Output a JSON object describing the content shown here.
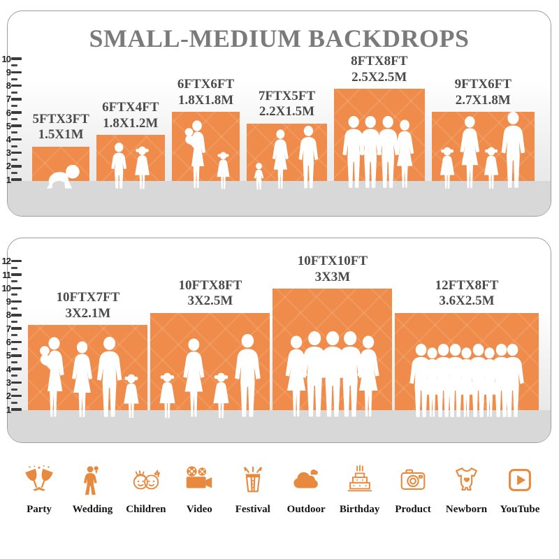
{
  "title": "SMALL-MEDIUM BACKDROPS",
  "panels": [
    {
      "name": "small-medium-backdrops",
      "ruler": {
        "min": 1,
        "max": 10
      },
      "backdrops": [
        {
          "size_ft": "5FTX3FT",
          "size_m": "1.5X1M",
          "w_ft": 5,
          "h_ft": 3,
          "figures": [
            "crawling-baby"
          ]
        },
        {
          "size_ft": "6FTX4FT",
          "size_m": "1.8X1.2M",
          "w_ft": 6,
          "h_ft": 4,
          "figures": [
            "boy",
            "girl"
          ]
        },
        {
          "size_ft": "6FTX6FT",
          "size_m": "1.8X1.8M",
          "w_ft": 6,
          "h_ft": 6,
          "figures": [
            "woman-with-baby",
            "girl"
          ]
        },
        {
          "size_ft": "7FTX5FT",
          "size_m": "2.2X1.5M",
          "w_ft": 7,
          "h_ft": 5,
          "figures": [
            "toddler",
            "woman",
            "man"
          ]
        },
        {
          "size_ft": "8FTX8FT",
          "size_m": "2.5X2.5M",
          "w_ft": 8,
          "h_ft": 8,
          "figures": [
            "man",
            "man",
            "man",
            "woman"
          ]
        },
        {
          "size_ft": "9FTX6FT",
          "size_m": "2.7X1.8M",
          "w_ft": 9,
          "h_ft": 6,
          "figures": [
            "girl",
            "woman",
            "girl",
            "man"
          ]
        }
      ]
    },
    {
      "name": "medium-backdrops",
      "ruler": {
        "min": 1,
        "max": 12
      },
      "backdrops": [
        {
          "size_ft": "10FTX7FT",
          "size_m": "3X2.1M",
          "w_ft": 10,
          "h_ft": 7,
          "figures": [
            "woman-with-baby",
            "woman",
            "man",
            "girl"
          ]
        },
        {
          "size_ft": "10FTX8FT",
          "size_m": "3X2.5M",
          "w_ft": 10,
          "h_ft": 8,
          "figures": [
            "girl",
            "woman",
            "girl",
            "man"
          ]
        },
        {
          "size_ft": "10FTX10FT",
          "size_m": "3X3M",
          "w_ft": 10,
          "h_ft": 10,
          "figures": [
            "woman",
            "man",
            "man",
            "man",
            "woman"
          ]
        },
        {
          "size_ft": "12FTX8FT",
          "size_m": "3.6X2.5M",
          "w_ft": 12,
          "h_ft": 8,
          "figures": [
            "man",
            "woman",
            "man",
            "man",
            "woman",
            "man",
            "woman",
            "man",
            "man"
          ]
        }
      ]
    }
  ],
  "categories": [
    {
      "label": "Party",
      "icon": "party-icon"
    },
    {
      "label": "Wedding",
      "icon": "wedding-icon"
    },
    {
      "label": "Children",
      "icon": "children-icon"
    },
    {
      "label": "Video",
      "icon": "video-icon"
    },
    {
      "label": "Festival",
      "icon": "festival-icon"
    },
    {
      "label": "Outdoor",
      "icon": "outdoor-icon"
    },
    {
      "label": "Birthday",
      "icon": "birthday-icon"
    },
    {
      "label": "Product",
      "icon": "product-icon"
    },
    {
      "label": "Newborn",
      "icon": "newborn-icon"
    },
    {
      "label": "YouTube",
      "icon": "youtube-icon"
    }
  ],
  "colors": {
    "backdrop_orange": "#EF8C4B",
    "icon_orange": "#E78A3F",
    "title_gray": "#7A7A7A",
    "label_gray": "#4A4A4A",
    "tick_dark": "#3A3A3A",
    "floor_gray": "#D8D8D8",
    "panel_border": "#9C9C9C"
  }
}
